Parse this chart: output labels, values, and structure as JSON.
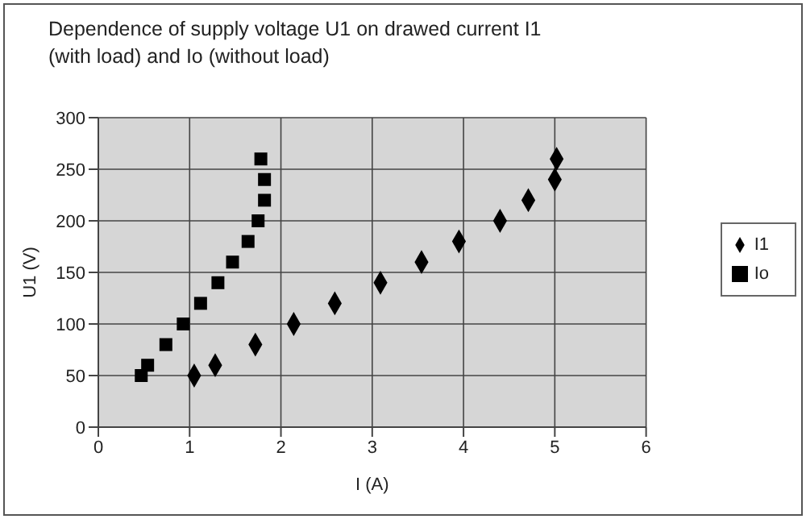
{
  "chart_data": {
    "type": "scatter",
    "title": "Dependence of supply voltage U1 on drawed current I1 (with load) and Io (without load)",
    "xlabel": "I (A)",
    "ylabel": "U1 (V)",
    "series": [
      {
        "name": "I1",
        "color": "#000000",
        "marker": "diamond",
        "x": [
          1.05,
          1.28,
          1.72,
          2.14,
          2.59,
          3.09,
          3.54,
          3.95,
          4.4,
          4.71,
          5.0,
          5.02
        ],
        "values": [
          50,
          60,
          80,
          100,
          120,
          140,
          160,
          180,
          200,
          220,
          240,
          260
        ]
      },
      {
        "name": "Io",
        "color": "#000000",
        "marker": "square",
        "x": [
          0.47,
          0.54,
          0.74,
          0.93,
          1.12,
          1.31,
          1.47,
          1.64,
          1.75,
          1.82,
          1.82,
          1.78
        ],
        "values": [
          50,
          60,
          80,
          100,
          120,
          140,
          160,
          180,
          200,
          220,
          240,
          260
        ]
      }
    ],
    "xlim": [
      0,
      6
    ],
    "xticks": [
      0,
      1,
      2,
      3,
      4,
      5,
      6
    ],
    "ylim": [
      0,
      300
    ],
    "yticks": [
      0,
      50,
      100,
      150,
      200,
      250,
      300
    ],
    "grid": true,
    "legend": "right"
  }
}
